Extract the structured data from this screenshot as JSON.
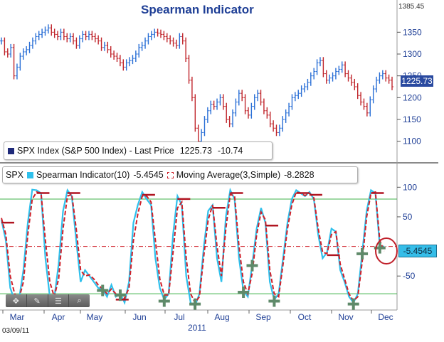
{
  "header": {
    "title": "Spearman Indicator",
    "date": "03/09/11",
    "year": "2011",
    "max_price_label": "1385.45"
  },
  "price_legend": {
    "symbol": "SPX Index (S&P 500 Index) - Last Price",
    "last": "1225.73",
    "change": "-10.74",
    "tag": "1225.73"
  },
  "indicator_legend": {
    "prefix": "SPX",
    "spearman": "Spearman Indicator(10)",
    "spearman_value": "-5.4545",
    "ma": "Moving Average(3,Simple)",
    "ma_value": "-8.2828",
    "tag": "-5.4545"
  },
  "toolbar": {
    "icons": [
      "move-icon",
      "pencil-icon",
      "lines-icon",
      "zoom-icon"
    ]
  },
  "colors": {
    "up": "#2a6fd6",
    "down": "#c0262c",
    "spearman": "#2fc0ec",
    "ma": "#d0202a",
    "level_line": "#3fb24a",
    "zero_line": "#d0202a",
    "axis_text": "#1f3f96"
  },
  "chart_data": [
    {
      "type": "line",
      "title": "Spearman Indicator",
      "series": [
        {
          "name": "SPX Index (S&P 500 Index) - Last Price",
          "values": [
            1330,
            1305,
            1300,
            1315,
            1250,
            1270,
            1295,
            1305,
            1310,
            1320,
            1330,
            1340,
            1345,
            1350,
            1355,
            1360,
            1350,
            1345,
            1340,
            1350,
            1340,
            1335,
            1340,
            1330,
            1320,
            1335,
            1345,
            1340,
            1345,
            1340,
            1335,
            1330,
            1315,
            1320,
            1310,
            1300,
            1295,
            1290,
            1280,
            1270,
            1280,
            1285,
            1290,
            1300,
            1315,
            1320,
            1330,
            1340,
            1345,
            1350,
            1348,
            1345,
            1340,
            1335,
            1330,
            1325,
            1320,
            1340,
            1330,
            1290,
            1240,
            1200,
            1130,
            1100,
            1120,
            1150,
            1170,
            1185,
            1180,
            1190,
            1200,
            1180,
            1150,
            1140,
            1165,
            1190,
            1210,
            1200,
            1170,
            1160,
            1180,
            1200,
            1210,
            1190,
            1170,
            1160,
            1140,
            1130,
            1120,
            1130,
            1150,
            1165,
            1180,
            1200,
            1205,
            1210,
            1220,
            1225,
            1235,
            1250,
            1260,
            1280,
            1285,
            1255,
            1240,
            1245,
            1250,
            1260,
            1265,
            1275,
            1255,
            1245,
            1235,
            1225,
            1205,
            1190,
            1180,
            1165,
            1195,
            1220,
            1240,
            1250,
            1255,
            1245,
            1240,
            1225
          ]
        }
      ],
      "x_labels": [
        "Mar",
        "Apr",
        "May",
        "Jun",
        "Jul",
        "Aug",
        "Sep",
        "Oct",
        "Nov",
        "Dec"
      ],
      "y_ticks": [
        1100,
        1150,
        1200,
        1250,
        1300,
        1350
      ],
      "ylim": [
        1060,
        1385.45
      ],
      "last_value": 1225.73,
      "change": -10.74
    },
    {
      "type": "line",
      "series": [
        {
          "name": "Spearman Indicator(10)",
          "values": [
            45,
            10,
            -70,
            -92,
            -90,
            -40,
            40,
            96,
            95,
            90,
            -20,
            -85,
            -88,
            -30,
            60,
            95,
            85,
            10,
            -60,
            -40,
            -50,
            -60,
            -70,
            -72,
            -85,
            -65,
            -85,
            -80,
            -95,
            -60,
            40,
            70,
            92,
            80,
            70,
            -20,
            -70,
            -90,
            -80,
            20,
            85,
            70,
            -50,
            -95,
            -100,
            -80,
            0,
            60,
            70,
            -20,
            -60,
            50,
            95,
            80,
            -20,
            -75,
            -85,
            -30,
            30,
            65,
            40,
            -60,
            -90,
            -80,
            -20,
            40,
            80,
            95,
            90,
            85,
            92,
            80,
            20,
            -20,
            -10,
            30,
            25,
            -40,
            -60,
            -85,
            -95,
            -80,
            -10,
            60,
            95,
            90,
            0,
            0
          ]
        },
        {
          "name": "Moving Average(3,Simple)",
          "values": [
            48,
            20,
            -50,
            -80,
            -88,
            -60,
            20,
            80,
            92,
            90,
            10,
            -60,
            -85,
            -55,
            30,
            85,
            88,
            30,
            -40,
            -50,
            -48,
            -55,
            -65,
            -72,
            -80,
            -72,
            -80,
            -82,
            -88,
            -70,
            10,
            55,
            85,
            85,
            75,
            10,
            -55,
            -82,
            -82,
            -10,
            65,
            75,
            -20,
            -80,
            -95,
            -85,
            -15,
            45,
            70,
            0,
            -50,
            30,
            88,
            85,
            0,
            -60,
            -80,
            -45,
            20,
            58,
            45,
            -40,
            -80,
            -85,
            -30,
            30,
            70,
            92,
            90,
            86,
            90,
            82,
            30,
            -10,
            -12,
            20,
            25,
            -30,
            -55,
            -80,
            -92,
            -85,
            -25,
            50,
            90,
            92,
            10,
            -8
          ]
        }
      ],
      "x_labels": [
        "Mar",
        "Apr",
        "May",
        "Jun",
        "Jul",
        "Aug",
        "Sep",
        "Oct",
        "Nov",
        "Dec"
      ],
      "y_ticks": [
        100,
        50,
        -50
      ],
      "ylim": [
        -100,
        110
      ],
      "last_spearman": -5.4545,
      "last_ma": -8.2828
    }
  ]
}
